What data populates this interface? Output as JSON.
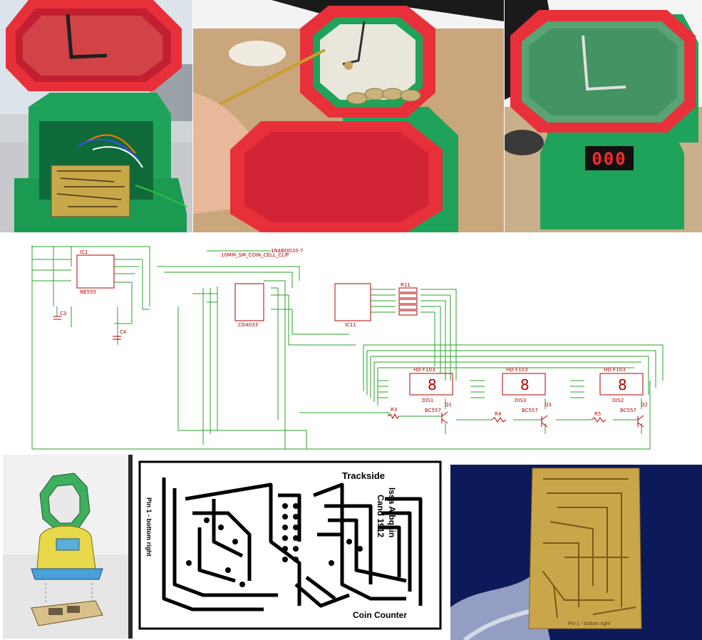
{
  "collage": {
    "panels": [
      {
        "name": "photo-open-coin-box"
      },
      {
        "name": "photo-hand-holding-lid"
      },
      {
        "name": "photo-assembled-coin-box"
      },
      {
        "name": "schematic-diagram"
      },
      {
        "name": "sketch-concept"
      },
      {
        "name": "pcb-layout-mask"
      },
      {
        "name": "photo-etched-pcb"
      }
    ]
  },
  "display": {
    "digits": "000",
    "digit_color": "#ff2a2a"
  },
  "schematic": {
    "ic1_label": "IC1",
    "ic1_part": "NE555",
    "ic2_part": "CD4033",
    "ic3_label": "IC11",
    "resistor_pack_label": "R11",
    "coin_cell_label": "10MM_SM_COIN_CELL_CLIP",
    "header_label": "1N4BDD35-7",
    "display_labels": [
      "HD-F103",
      "HD-F103",
      "HD-F103"
    ],
    "display_names": [
      "DIS1",
      "DIS3",
      "DIS2"
    ],
    "transistor_labels": [
      "BC557",
      "BC557",
      "BC557"
    ],
    "resistor_labels": [
      "R3",
      "R4",
      "R5"
    ],
    "cap_labels": [
      "C3",
      "C4"
    ],
    "transistor_names": [
      "Q1",
      "Q3",
      "Q2"
    ]
  },
  "pcb": {
    "title_top": "Trackside",
    "name_line1": "Issa Albqain",
    "name_line2": "Cand 1912",
    "bottom_label": "Coin Counter",
    "side_label": "Pin 1 - bottom right"
  },
  "etched_pcb": {
    "side_label": "Pin 1 - bottom right"
  },
  "colors": {
    "green_case": "#1fa35a",
    "red_frame": "#e8303a",
    "schematic_wire": "#2aa02a",
    "schematic_part": "#b00000",
    "sketch_yellow": "#e8d84a",
    "sketch_green": "#3fae5f",
    "pcb_copper": "#c9a64a",
    "night_blue": "#0d1a5a"
  }
}
